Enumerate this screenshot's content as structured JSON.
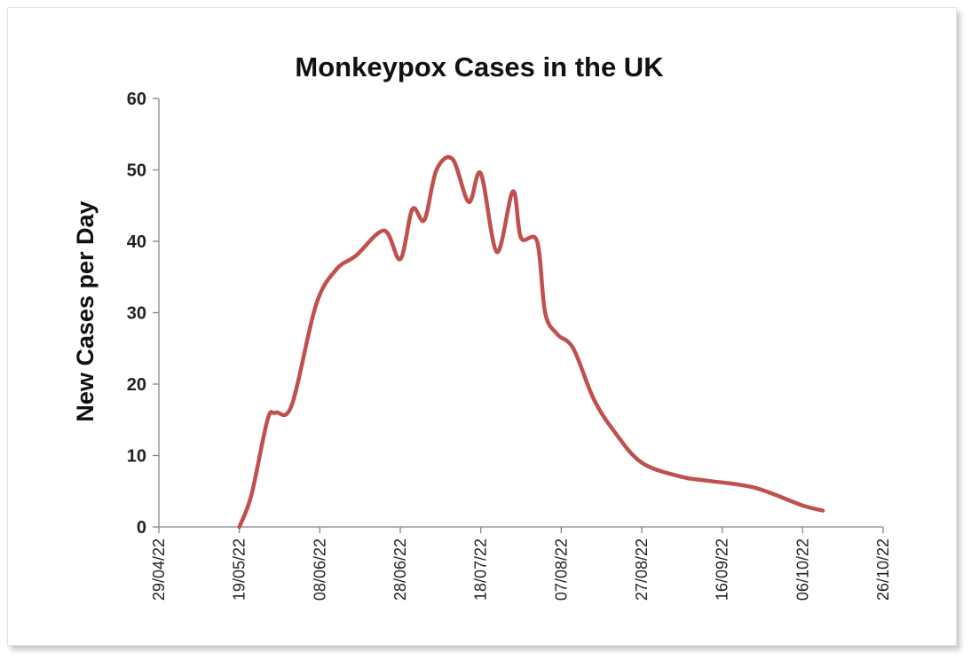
{
  "chart_data": {
    "type": "line",
    "title": "Monkeypox Cases in the UK",
    "xlabel": "",
    "ylabel": "New Cases per Day",
    "ylim": [
      0,
      60
    ],
    "yticks": [
      0,
      10,
      20,
      30,
      40,
      50,
      60
    ],
    "xlim": [
      "2022-04-29",
      "2022-10-26"
    ],
    "xtick_labels": [
      "29/04/22",
      "19/05/22",
      "08/06/22",
      "28/06/22",
      "18/07/22",
      "07/08/22",
      "27/08/22",
      "16/09/22",
      "06/10/22",
      "26/10/22"
    ],
    "grid": false,
    "legend": "none",
    "series": [
      {
        "color": "#C0504D",
        "x": [
          "2022-05-19",
          "2022-05-22",
          "2022-05-26",
          "2022-05-28",
          "2022-06-01",
          "2022-06-07",
          "2022-06-12",
          "2022-06-17",
          "2022-06-24",
          "2022-06-28",
          "2022-07-01",
          "2022-07-04",
          "2022-07-07",
          "2022-07-11",
          "2022-07-15",
          "2022-07-18",
          "2022-07-22",
          "2022-07-26",
          "2022-07-28",
          "2022-08-01",
          "2022-08-03",
          "2022-08-06",
          "2022-08-10",
          "2022-08-15",
          "2022-08-20",
          "2022-08-27",
          "2022-09-06",
          "2022-09-12",
          "2022-09-24",
          "2022-10-06",
          "2022-10-11"
        ],
        "y": [
          0,
          4.5,
          15,
          16,
          17,
          31,
          36,
          38,
          41.5,
          37.5,
          44.5,
          43,
          50,
          51.5,
          45.5,
          49.5,
          38.5,
          47,
          40.5,
          40,
          30,
          27,
          25,
          18,
          13.5,
          9,
          7,
          6.5,
          5.5,
          3,
          2.3
        ]
      }
    ]
  }
}
